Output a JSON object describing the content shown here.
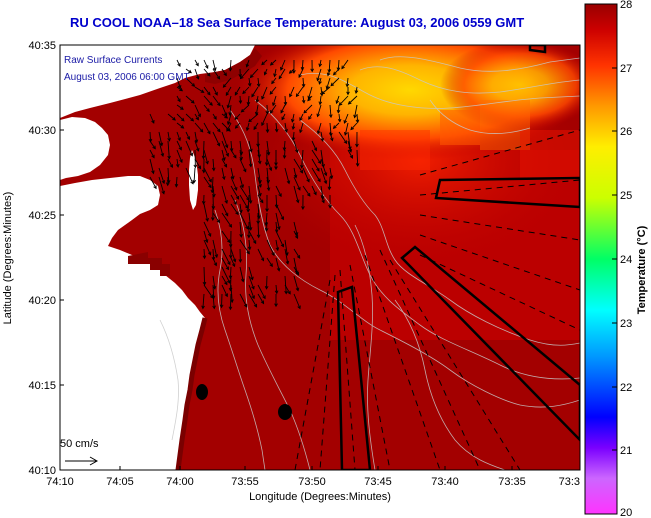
{
  "title": "RU COOL  NOAA–18  Sea Surface Temperature:  August 03, 2006 0559 GMT",
  "overlay": {
    "line1": "Raw Surface Currents",
    "line2": "August 03, 2006 06:00 GMT"
  },
  "axes": {
    "xlabel": "Longitude (Degrees:Minutes)",
    "ylabel": "Latitude (Degrees:Minutes)",
    "x_ticks": [
      "74:10",
      "74:05",
      "74:00",
      "73:55",
      "73:50",
      "73:45",
      "73:40",
      "73:35",
      "73:3"
    ],
    "y_ticks": [
      "40:35",
      "40:30",
      "40:25",
      "40:20",
      "40:15",
      "40:10"
    ]
  },
  "colorbar": {
    "label": "Temperature (°C)",
    "ticks": [
      "28",
      "27",
      "26",
      "25",
      "24",
      "23",
      "22",
      "21",
      "20"
    ],
    "min": 20,
    "max": 28
  },
  "scale_label": "50 cm/s",
  "colors": {
    "title": "#0000cc",
    "sst_warm": "#9c0000",
    "sst_hot": "#ffd800",
    "land": "#ffffff",
    "shore_water": "#7a0000"
  }
}
